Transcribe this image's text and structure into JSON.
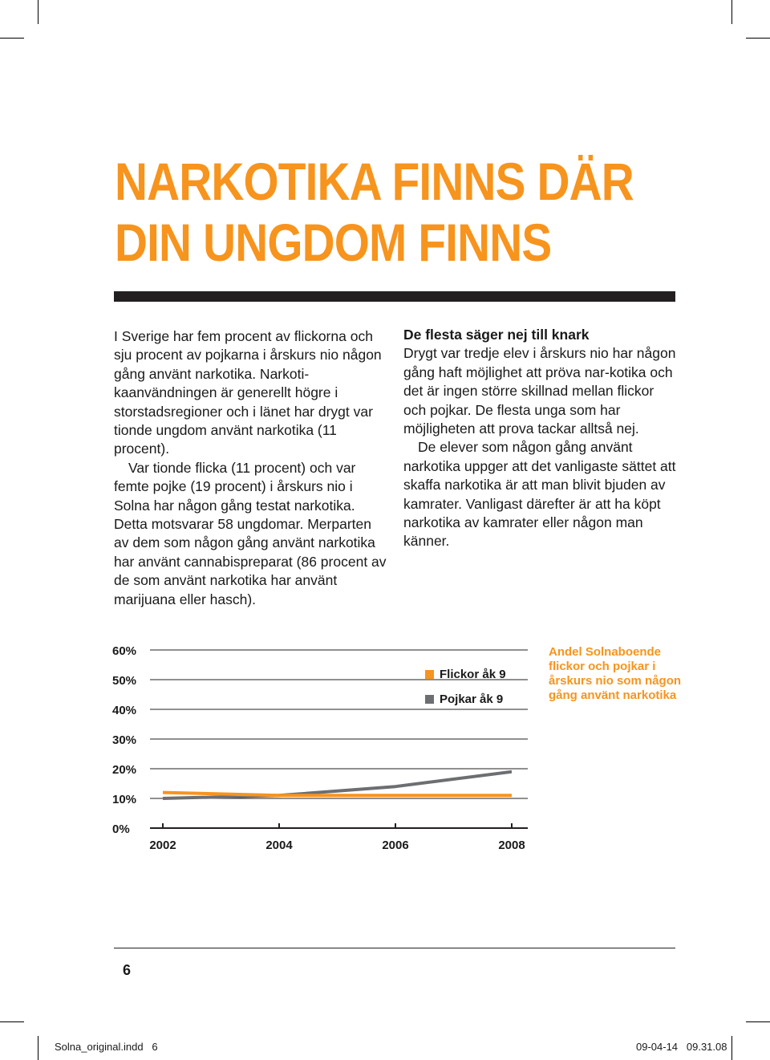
{
  "title": {
    "line1": "NARKOTIKA FINNS DÄR",
    "line2": "DIN UNGDOM FINNS"
  },
  "left_column": {
    "p1": "I Sverige har fem procent av flickorna och sju procent av pojkarna i årskurs nio någon gång använt narkotika. Narkoti-kaanvändningen är generellt högre i storstadsregioner och i länet har drygt var tionde ungdom använt narkotika (11 procent).",
    "p2": "Var tionde flicka (11 procent) och var femte pojke (19 procent) i årskurs nio i Solna har någon gång testat narkotika. Detta motsvarar 58 ungdomar. Merparten av dem som någon gång använt narkotika har använt cannabispreparat (86 procent av de som använt narkotika har använt marijuana eller hasch)."
  },
  "right_column": {
    "heading": "De flesta säger nej till knark",
    "p1": "Drygt var tredje elev i årskurs nio har någon gång haft möjlighet att pröva nar-kotika och det är ingen större skillnad mellan flickor och pojkar. De flesta unga som har möjligheten att prova tackar alltså nej.",
    "p2": "De elever som någon gång använt narkotika uppger att det vanligaste sättet att skaffa narkotika är att man blivit bjuden av kamrater. Vanligast därefter är att ha köpt narkotika av kamrater eller någon man känner."
  },
  "chart_caption": "Andel Solnaboende flickor och pojkar i årskurs nio som någon gång använt narkotika",
  "chart_data": {
    "type": "line",
    "title": "Andel Solnaboende flickor och pojkar i årskurs nio som någon gång använt narkotika",
    "x": [
      2002,
      2004,
      2006,
      2008
    ],
    "x_tick_labels": [
      "2002",
      "2004",
      "2006",
      "2008"
    ],
    "y_tick_labels": [
      "0%",
      "10%",
      "20%",
      "30%",
      "40%",
      "50%",
      "60%"
    ],
    "ylim": [
      0,
      60
    ],
    "grid": true,
    "legend_position": "top-right",
    "series": [
      {
        "name": "Flickor åk 9",
        "color": "#f7941d",
        "values": [
          12,
          11,
          11,
          11
        ]
      },
      {
        "name": "Pojkar åk 9",
        "color": "#6d6e71",
        "values": [
          10,
          11,
          14,
          19
        ]
      }
    ]
  },
  "footer": {
    "page_number": "6",
    "slug_file": "Solna_original.indd   6",
    "slug_date": "09-04-14   09.31.08"
  }
}
